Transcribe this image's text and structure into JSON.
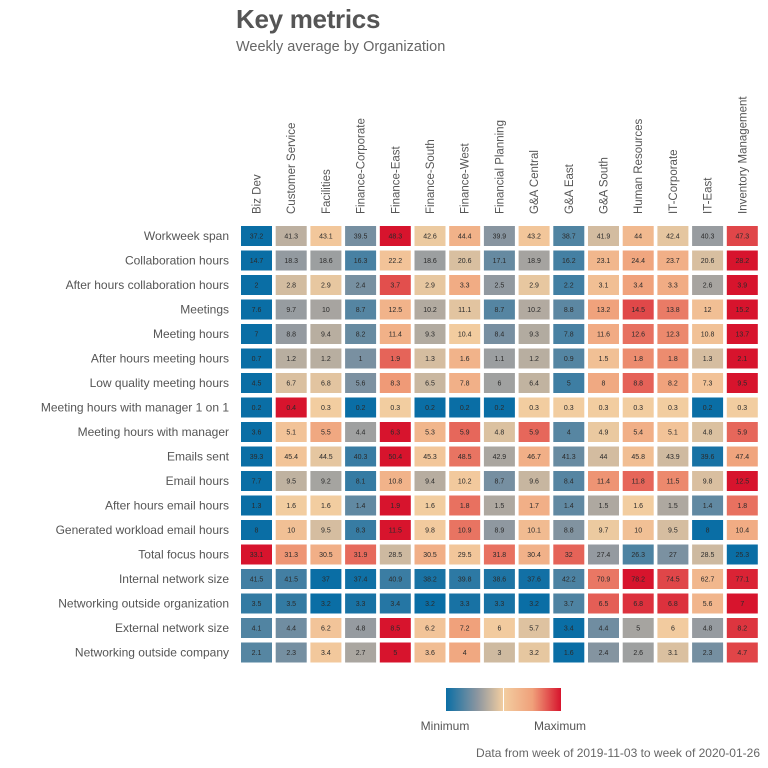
{
  "chart_data": {
    "type": "heatmap",
    "title": "Key metrics",
    "subtitle": "Weekly average by Organization",
    "caption": "Data from week of 2019-11-03 to week of 2020-01-26",
    "color_scale": {
      "normalization": "per-row min-max",
      "low_label": "Minimum",
      "high_label": "Maximum",
      "colors": [
        "#0a6ea5",
        "#8c96a0",
        "#f2cda0",
        "#f0a07a",
        "#d7142d"
      ]
    },
    "columns": [
      "Biz Dev",
      "Customer Service",
      "Facilities",
      "Finance-Corporate",
      "Finance-East",
      "Finance-South",
      "Finance-West",
      "Financial Planning",
      "G&A Central",
      "G&A East",
      "G&A South",
      "Human Resources",
      "IT-Corporate",
      "IT-East",
      "Inventory Management"
    ],
    "rows": [
      {
        "metric": "Workweek span",
        "values": [
          37.2,
          41.3,
          43.1,
          39.5,
          48.3,
          42.6,
          44.4,
          39.9,
          43.2,
          38.7,
          41.9,
          44,
          42.4,
          40.3,
          47.3
        ]
      },
      {
        "metric": "Collaboration hours",
        "values": [
          14.7,
          18.3,
          18.6,
          16.3,
          22.2,
          18.6,
          20.6,
          17.1,
          18.9,
          16.2,
          23.1,
          24.4,
          23.7,
          20.6,
          28.2
        ]
      },
      {
        "metric": "After hours collaboration hours",
        "values": [
          2,
          2.8,
          2.9,
          2.4,
          3.7,
          2.9,
          3.3,
          2.5,
          2.9,
          2.2,
          3.1,
          3.4,
          3.3,
          2.6,
          3.9
        ]
      },
      {
        "metric": "Meetings",
        "values": [
          7.6,
          9.7,
          10,
          8.7,
          12.5,
          10.2,
          11.1,
          8.7,
          10.2,
          8.8,
          13.2,
          14.5,
          13.8,
          12,
          15.2
        ]
      },
      {
        "metric": "Meeting hours",
        "values": [
          7,
          8.8,
          9.4,
          8.2,
          11.4,
          9.3,
          10.4,
          8.4,
          9.3,
          7.8,
          11.6,
          12.6,
          12.3,
          10.8,
          13.7
        ]
      },
      {
        "metric": "After hours meeting hours",
        "values": [
          0.7,
          1.2,
          1.2,
          1,
          1.9,
          1.3,
          1.6,
          1.1,
          1.2,
          0.9,
          1.5,
          1.8,
          1.8,
          1.3,
          2.1
        ]
      },
      {
        "metric": "Low quality meeting hours",
        "values": [
          4.5,
          6.7,
          6.8,
          5.6,
          8.3,
          6.5,
          7.8,
          6,
          6.4,
          5,
          8,
          8.8,
          8.2,
          7.3,
          9.5
        ]
      },
      {
        "metric": "Meeting hours with manager 1 on 1",
        "values": [
          0.2,
          0.4,
          0.3,
          0.2,
          0.3,
          0.2,
          0.2,
          0.2,
          0.3,
          0.3,
          0.3,
          0.3,
          0.3,
          0.2,
          0.3
        ]
      },
      {
        "metric": "Meeting hours with manager",
        "values": [
          3.6,
          5.1,
          5.5,
          4.4,
          6.3,
          5.3,
          5.9,
          4.8,
          5.9,
          4,
          4.9,
          5.4,
          5.1,
          4.8,
          5.9
        ]
      },
      {
        "metric": "Emails sent",
        "values": [
          39.3,
          45.4,
          44.5,
          40.3,
          50.4,
          45.3,
          48.5,
          42.9,
          46.7,
          41.3,
          44,
          45.8,
          43.9,
          39.6,
          47.4
        ]
      },
      {
        "metric": "Email hours",
        "values": [
          7.7,
          9.5,
          9.2,
          8.1,
          10.8,
          9.4,
          10.2,
          8.7,
          9.6,
          8.4,
          11.4,
          11.8,
          11.5,
          9.8,
          12.5
        ]
      },
      {
        "metric": "After hours email hours",
        "values": [
          1.3,
          1.6,
          1.6,
          1.4,
          1.9,
          1.6,
          1.8,
          1.5,
          1.7,
          1.4,
          1.5,
          1.6,
          1.5,
          1.4,
          1.8
        ]
      },
      {
        "metric": "Generated workload email hours",
        "values": [
          8,
          10,
          9.5,
          8.3,
          11.5,
          9.8,
          10.9,
          8.9,
          10.1,
          8.8,
          9.7,
          10,
          9.5,
          8,
          10.4
        ]
      },
      {
        "metric": "Total focus hours",
        "values": [
          33.1,
          31.3,
          30.5,
          31.9,
          28.5,
          30.5,
          29.5,
          31.8,
          30.4,
          32,
          27.4,
          26.3,
          27,
          28.5,
          25.3
        ]
      },
      {
        "metric": "Internal network size",
        "values": [
          41.5,
          41.5,
          37,
          37.4,
          40.9,
          38.2,
          39.8,
          38.6,
          37.6,
          42.2,
          70.9,
          78.2,
          74.5,
          62.7,
          77.1
        ]
      },
      {
        "metric": "Networking outside organization",
        "values": [
          3.5,
          3.5,
          3.2,
          3.3,
          3.4,
          3.2,
          3.3,
          3.3,
          3.2,
          3.7,
          6.5,
          6.8,
          6.8,
          5.6,
          7
        ]
      },
      {
        "metric": "External network size",
        "values": [
          4.1,
          4.4,
          6.2,
          4.8,
          8.5,
          6.2,
          7.2,
          6,
          5.7,
          3.4,
          4.4,
          5,
          6,
          4.8,
          8.2
        ]
      },
      {
        "metric": "Networking outside company",
        "values": [
          2.1,
          2.3,
          3.4,
          2.7,
          5,
          3.6,
          4,
          3,
          3.2,
          1.6,
          2.4,
          2.6,
          3.1,
          2.3,
          4.7
        ]
      }
    ]
  }
}
